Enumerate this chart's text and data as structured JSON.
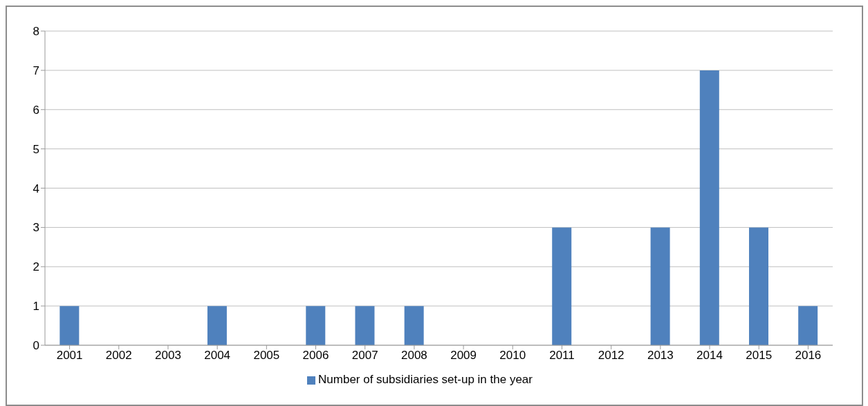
{
  "chart_data": {
    "type": "bar",
    "categories": [
      "2001",
      "2002",
      "2003",
      "2004",
      "2005",
      "2006",
      "2007",
      "2008",
      "2009",
      "2010",
      "2011",
      "2012",
      "2013",
      "2014",
      "2015",
      "2016"
    ],
    "series": [
      {
        "name": "Number of subsidiaries set-up in the year",
        "color": "#4f81bd",
        "values": [
          1,
          0,
          0,
          1,
          0,
          1,
          1,
          1,
          0,
          0,
          3,
          0,
          3,
          7,
          3,
          1
        ]
      }
    ],
    "ylim": [
      0,
      8
    ],
    "yticks": [
      0,
      1,
      2,
      3,
      4,
      5,
      6,
      7,
      8
    ],
    "grid": "y",
    "legend": "bottom"
  }
}
